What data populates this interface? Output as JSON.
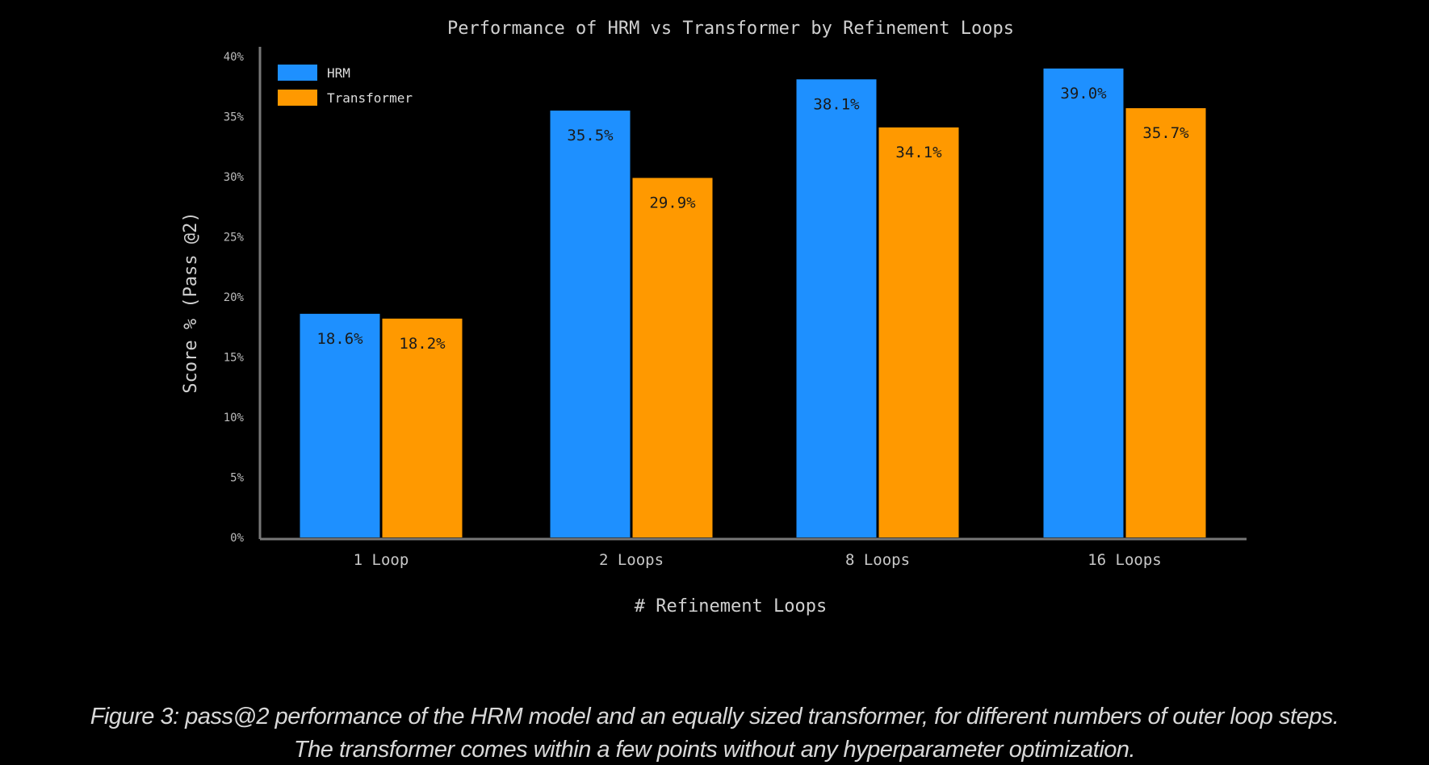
{
  "chart_data": {
    "type": "bar",
    "title": "Performance of HRM vs Transformer by Refinement Loops",
    "xlabel": "# Refinement Loops",
    "ylabel": "Score % (Pass @2)",
    "categories": [
      "1 Loop",
      "2 Loops",
      "8 Loops",
      "16 Loops"
    ],
    "series": [
      {
        "name": "HRM",
        "values": [
          18.6,
          35.5,
          38.1,
          39.0
        ],
        "labels": [
          "18.6%",
          "35.5%",
          "38.1%",
          "39.0%"
        ],
        "color": "#1e90ff"
      },
      {
        "name": "Transformer",
        "values": [
          18.2,
          29.9,
          34.1,
          35.7
        ],
        "labels": [
          "18.2%",
          "29.9%",
          "34.1%",
          "35.7%"
        ],
        "color": "#ff9900"
      }
    ],
    "ylim": [
      0,
      40
    ],
    "yticks": [
      0,
      5,
      10,
      15,
      20,
      25,
      30,
      35,
      40
    ],
    "ytick_labels": [
      "0%",
      "5%",
      "10%",
      "15%",
      "20%",
      "25%",
      "30%",
      "35%",
      "40%"
    ],
    "grid": false,
    "legend": "top-left",
    "background": "#000000"
  },
  "caption": {
    "line1": "Figure 3: pass@2 performance of the HRM model and an equally sized transformer, for different numbers of outer loop steps.",
    "line2": "The transformer comes within a few points without any hyperparameter optimization."
  }
}
